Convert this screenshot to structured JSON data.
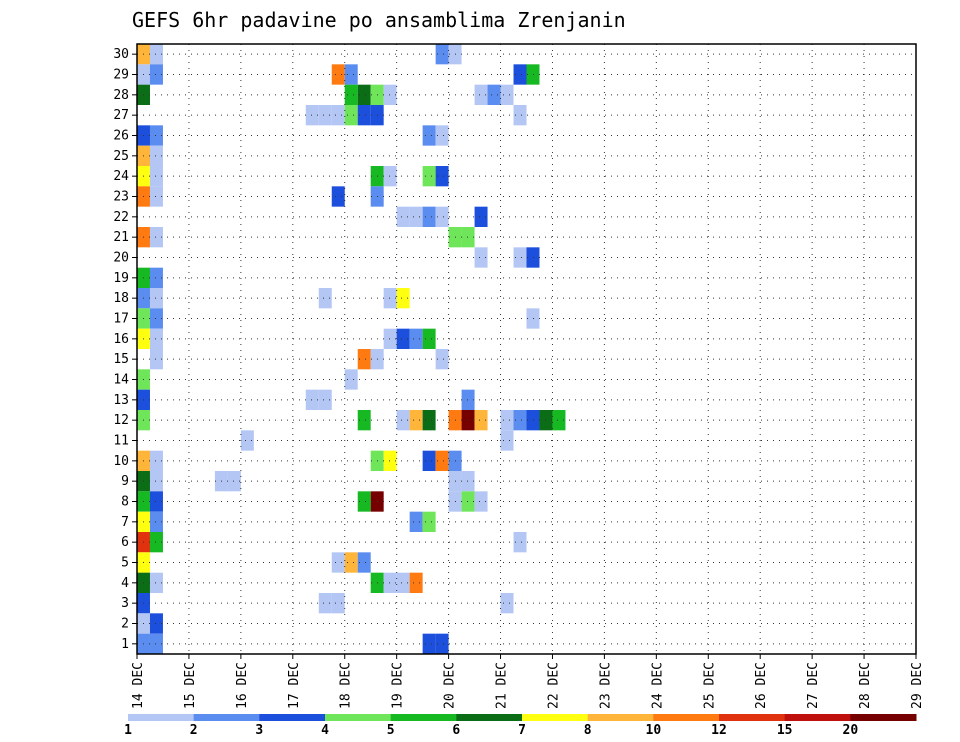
{
  "chart_data": {
    "type": "heatmap",
    "title": "GEFS 6hr padavine po ansamblima Zrenjanin",
    "xlabel": "",
    "ylabel": "",
    "x_tick_labels": [
      "14 DEC",
      "15 DEC",
      "16 DEC",
      "17 DEC",
      "18 DEC",
      "19 DEC",
      "20 DEC",
      "21 DEC",
      "22 DEC",
      "23 DEC",
      "24 DEC",
      "25 DEC",
      "26 DEC",
      "27 DEC",
      "28 DEC",
      "29 DEC"
    ],
    "y_tick_labels": [
      "1",
      "2",
      "3",
      "4",
      "5",
      "6",
      "7",
      "8",
      "9",
      "10",
      "11",
      "12",
      "13",
      "14",
      "15",
      "16",
      "17",
      "18",
      "19",
      "20",
      "21",
      "22",
      "23",
      "24",
      "25",
      "26",
      "27",
      "28",
      "29",
      "30"
    ],
    "x_range_days": [
      0,
      15
    ],
    "y_range_members": [
      0,
      30
    ],
    "time_step_hours": 6,
    "grid": true,
    "colorbar": {
      "position": "bottom",
      "colors": [
        "#b3c6f4",
        "#5b8cf0",
        "#1c4fdc",
        "#6fe65a",
        "#16b922",
        "#0b6e16",
        "#ffff10",
        "#ffb43a",
        "#ff7a10",
        "#e0320e",
        "#c0100e",
        "#760000"
      ],
      "tick_labels": [
        "1",
        "2",
        "3",
        "4",
        "5",
        "6",
        "7",
        "8",
        "10",
        "12",
        "15",
        "20"
      ]
    },
    "legend_placement": "bottom",
    "cells": [
      {
        "member": 30,
        "slot": 0,
        "class": 8
      },
      {
        "member": 30,
        "slot": 1,
        "class": 1
      },
      {
        "member": 30,
        "slot": 23,
        "class": 2
      },
      {
        "member": 30,
        "slot": 24,
        "class": 1
      },
      {
        "member": 29,
        "slot": 0,
        "class": 1
      },
      {
        "member": 29,
        "slot": 1,
        "class": 2
      },
      {
        "member": 29,
        "slot": 15,
        "class": 9
      },
      {
        "member": 29,
        "slot": 16,
        "class": 2
      },
      {
        "member": 29,
        "slot": 29,
        "class": 3
      },
      {
        "member": 29,
        "slot": 30,
        "class": 5
      },
      {
        "member": 28,
        "slot": 0,
        "class": 6
      },
      {
        "member": 28,
        "slot": 16,
        "class": 5
      },
      {
        "member": 28,
        "slot": 17,
        "class": 6
      },
      {
        "member": 28,
        "slot": 18,
        "class": 4
      },
      {
        "member": 28,
        "slot": 19,
        "class": 1
      },
      {
        "member": 28,
        "slot": 26,
        "class": 1
      },
      {
        "member": 28,
        "slot": 27,
        "class": 2
      },
      {
        "member": 28,
        "slot": 28,
        "class": 1
      },
      {
        "member": 27,
        "slot": 13,
        "class": 1
      },
      {
        "member": 27,
        "slot": 14,
        "class": 1
      },
      {
        "member": 27,
        "slot": 15,
        "class": 1
      },
      {
        "member": 27,
        "slot": 16,
        "class": 4
      },
      {
        "member": 27,
        "slot": 17,
        "class": 3
      },
      {
        "member": 27,
        "slot": 18,
        "class": 3
      },
      {
        "member": 27,
        "slot": 29,
        "class": 1
      },
      {
        "member": 26,
        "slot": 0,
        "class": 3
      },
      {
        "member": 26,
        "slot": 1,
        "class": 2
      },
      {
        "member": 26,
        "slot": 22,
        "class": 2
      },
      {
        "member": 26,
        "slot": 23,
        "class": 1
      },
      {
        "member": 25,
        "slot": 0,
        "class": 8
      },
      {
        "member": 25,
        "slot": 1,
        "class": 1
      },
      {
        "member": 24,
        "slot": 0,
        "class": 7
      },
      {
        "member": 24,
        "slot": 1,
        "class": 1
      },
      {
        "member": 24,
        "slot": 18,
        "class": 5
      },
      {
        "member": 24,
        "slot": 19,
        "class": 1
      },
      {
        "member": 24,
        "slot": 22,
        "class": 4
      },
      {
        "member": 24,
        "slot": 23,
        "class": 3
      },
      {
        "member": 23,
        "slot": 0,
        "class": 9
      },
      {
        "member": 23,
        "slot": 1,
        "class": 1
      },
      {
        "member": 23,
        "slot": 15,
        "class": 3
      },
      {
        "member": 23,
        "slot": 18,
        "class": 2
      },
      {
        "member": 22,
        "slot": 20,
        "class": 1
      },
      {
        "member": 22,
        "slot": 21,
        "class": 1
      },
      {
        "member": 22,
        "slot": 22,
        "class": 2
      },
      {
        "member": 22,
        "slot": 23,
        "class": 1
      },
      {
        "member": 22,
        "slot": 26,
        "class": 3
      },
      {
        "member": 21,
        "slot": 0,
        "class": 9
      },
      {
        "member": 21,
        "slot": 1,
        "class": 1
      },
      {
        "member": 21,
        "slot": 24,
        "class": 4
      },
      {
        "member": 21,
        "slot": 25,
        "class": 4
      },
      {
        "member": 20,
        "slot": 26,
        "class": 1
      },
      {
        "member": 20,
        "slot": 29,
        "class": 1
      },
      {
        "member": 20,
        "slot": 30,
        "class": 3
      },
      {
        "member": 19,
        "slot": 0,
        "class": 5
      },
      {
        "member": 19,
        "slot": 1,
        "class": 2
      },
      {
        "member": 18,
        "slot": 0,
        "class": 2
      },
      {
        "member": 18,
        "slot": 1,
        "class": 1
      },
      {
        "member": 18,
        "slot": 14,
        "class": 1
      },
      {
        "member": 18,
        "slot": 19,
        "class": 1
      },
      {
        "member": 18,
        "slot": 20,
        "class": 7
      },
      {
        "member": 17,
        "slot": 0,
        "class": 4
      },
      {
        "member": 17,
        "slot": 1,
        "class": 2
      },
      {
        "member": 17,
        "slot": 30,
        "class": 1
      },
      {
        "member": 16,
        "slot": 0,
        "class": 7
      },
      {
        "member": 16,
        "slot": 1,
        "class": 1
      },
      {
        "member": 16,
        "slot": 19,
        "class": 1
      },
      {
        "member": 16,
        "slot": 20,
        "class": 3
      },
      {
        "member": 16,
        "slot": 21,
        "class": 2
      },
      {
        "member": 16,
        "slot": 22,
        "class": 5
      },
      {
        "member": 15,
        "slot": 1,
        "class": 1
      },
      {
        "member": 15,
        "slot": 17,
        "class": 9
      },
      {
        "member": 15,
        "slot": 18,
        "class": 1
      },
      {
        "member": 15,
        "slot": 23,
        "class": 1
      },
      {
        "member": 14,
        "slot": 0,
        "class": 4
      },
      {
        "member": 14,
        "slot": 16,
        "class": 1
      },
      {
        "member": 13,
        "slot": 0,
        "class": 3
      },
      {
        "member": 13,
        "slot": 13,
        "class": 1
      },
      {
        "member": 13,
        "slot": 14,
        "class": 1
      },
      {
        "member": 13,
        "slot": 25,
        "class": 2
      },
      {
        "member": 12,
        "slot": 0,
        "class": 4
      },
      {
        "member": 12,
        "slot": 17,
        "class": 5
      },
      {
        "member": 12,
        "slot": 20,
        "class": 1
      },
      {
        "member": 12,
        "slot": 21,
        "class": 8
      },
      {
        "member": 12,
        "slot": 22,
        "class": 6
      },
      {
        "member": 12,
        "slot": 24,
        "class": 9
      },
      {
        "member": 12,
        "slot": 25,
        "class": 12
      },
      {
        "member": 12,
        "slot": 26,
        "class": 8
      },
      {
        "member": 12,
        "slot": 28,
        "class": 1
      },
      {
        "member": 12,
        "slot": 29,
        "class": 2
      },
      {
        "member": 12,
        "slot": 30,
        "class": 3
      },
      {
        "member": 12,
        "slot": 31,
        "class": 6
      },
      {
        "member": 12,
        "slot": 32,
        "class": 5
      },
      {
        "member": 11,
        "slot": 8,
        "class": 1
      },
      {
        "member": 11,
        "slot": 28,
        "class": 1
      },
      {
        "member": 10,
        "slot": 0,
        "class": 8
      },
      {
        "member": 10,
        "slot": 1,
        "class": 1
      },
      {
        "member": 10,
        "slot": 18,
        "class": 4
      },
      {
        "member": 10,
        "slot": 19,
        "class": 7
      },
      {
        "member": 10,
        "slot": 22,
        "class": 3
      },
      {
        "member": 10,
        "slot": 23,
        "class": 9
      },
      {
        "member": 10,
        "slot": 24,
        "class": 2
      },
      {
        "member": 9,
        "slot": 0,
        "class": 6
      },
      {
        "member": 9,
        "slot": 1,
        "class": 1
      },
      {
        "member": 9,
        "slot": 6,
        "class": 1
      },
      {
        "member": 9,
        "slot": 7,
        "class": 1
      },
      {
        "member": 9,
        "slot": 24,
        "class": 1
      },
      {
        "member": 9,
        "slot": 25,
        "class": 1
      },
      {
        "member": 8,
        "slot": 0,
        "class": 5
      },
      {
        "member": 8,
        "slot": 1,
        "class": 3
      },
      {
        "member": 8,
        "slot": 17,
        "class": 5
      },
      {
        "member": 8,
        "slot": 18,
        "class": 12
      },
      {
        "member": 8,
        "slot": 24,
        "class": 1
      },
      {
        "member": 8,
        "slot": 25,
        "class": 4
      },
      {
        "member": 8,
        "slot": 26,
        "class": 1
      },
      {
        "member": 7,
        "slot": 0,
        "class": 7
      },
      {
        "member": 7,
        "slot": 1,
        "class": 2
      },
      {
        "member": 7,
        "slot": 21,
        "class": 2
      },
      {
        "member": 7,
        "slot": 22,
        "class": 4
      },
      {
        "member": 6,
        "slot": 0,
        "class": 10
      },
      {
        "member": 6,
        "slot": 1,
        "class": 5
      },
      {
        "member": 6,
        "slot": 29,
        "class": 1
      },
      {
        "member": 5,
        "slot": 0,
        "class": 7
      },
      {
        "member": 5,
        "slot": 15,
        "class": 1
      },
      {
        "member": 5,
        "slot": 16,
        "class": 8
      },
      {
        "member": 5,
        "slot": 17,
        "class": 2
      },
      {
        "member": 4,
        "slot": 0,
        "class": 6
      },
      {
        "member": 4,
        "slot": 1,
        "class": 1
      },
      {
        "member": 4,
        "slot": 18,
        "class": 5
      },
      {
        "member": 4,
        "slot": 19,
        "class": 1
      },
      {
        "member": 4,
        "slot": 20,
        "class": 1
      },
      {
        "member": 4,
        "slot": 21,
        "class": 9
      },
      {
        "member": 3,
        "slot": 0,
        "class": 3
      },
      {
        "member": 3,
        "slot": 14,
        "class": 1
      },
      {
        "member": 3,
        "slot": 15,
        "class": 1
      },
      {
        "member": 3,
        "slot": 28,
        "class": 1
      },
      {
        "member": 2,
        "slot": 0,
        "class": 1
      },
      {
        "member": 2,
        "slot": 1,
        "class": 3
      },
      {
        "member": 1,
        "slot": 0,
        "class": 2
      },
      {
        "member": 1,
        "slot": 1,
        "class": 2
      },
      {
        "member": 1,
        "slot": 22,
        "class": 3
      },
      {
        "member": 1,
        "slot": 23,
        "class": 3
      }
    ]
  }
}
